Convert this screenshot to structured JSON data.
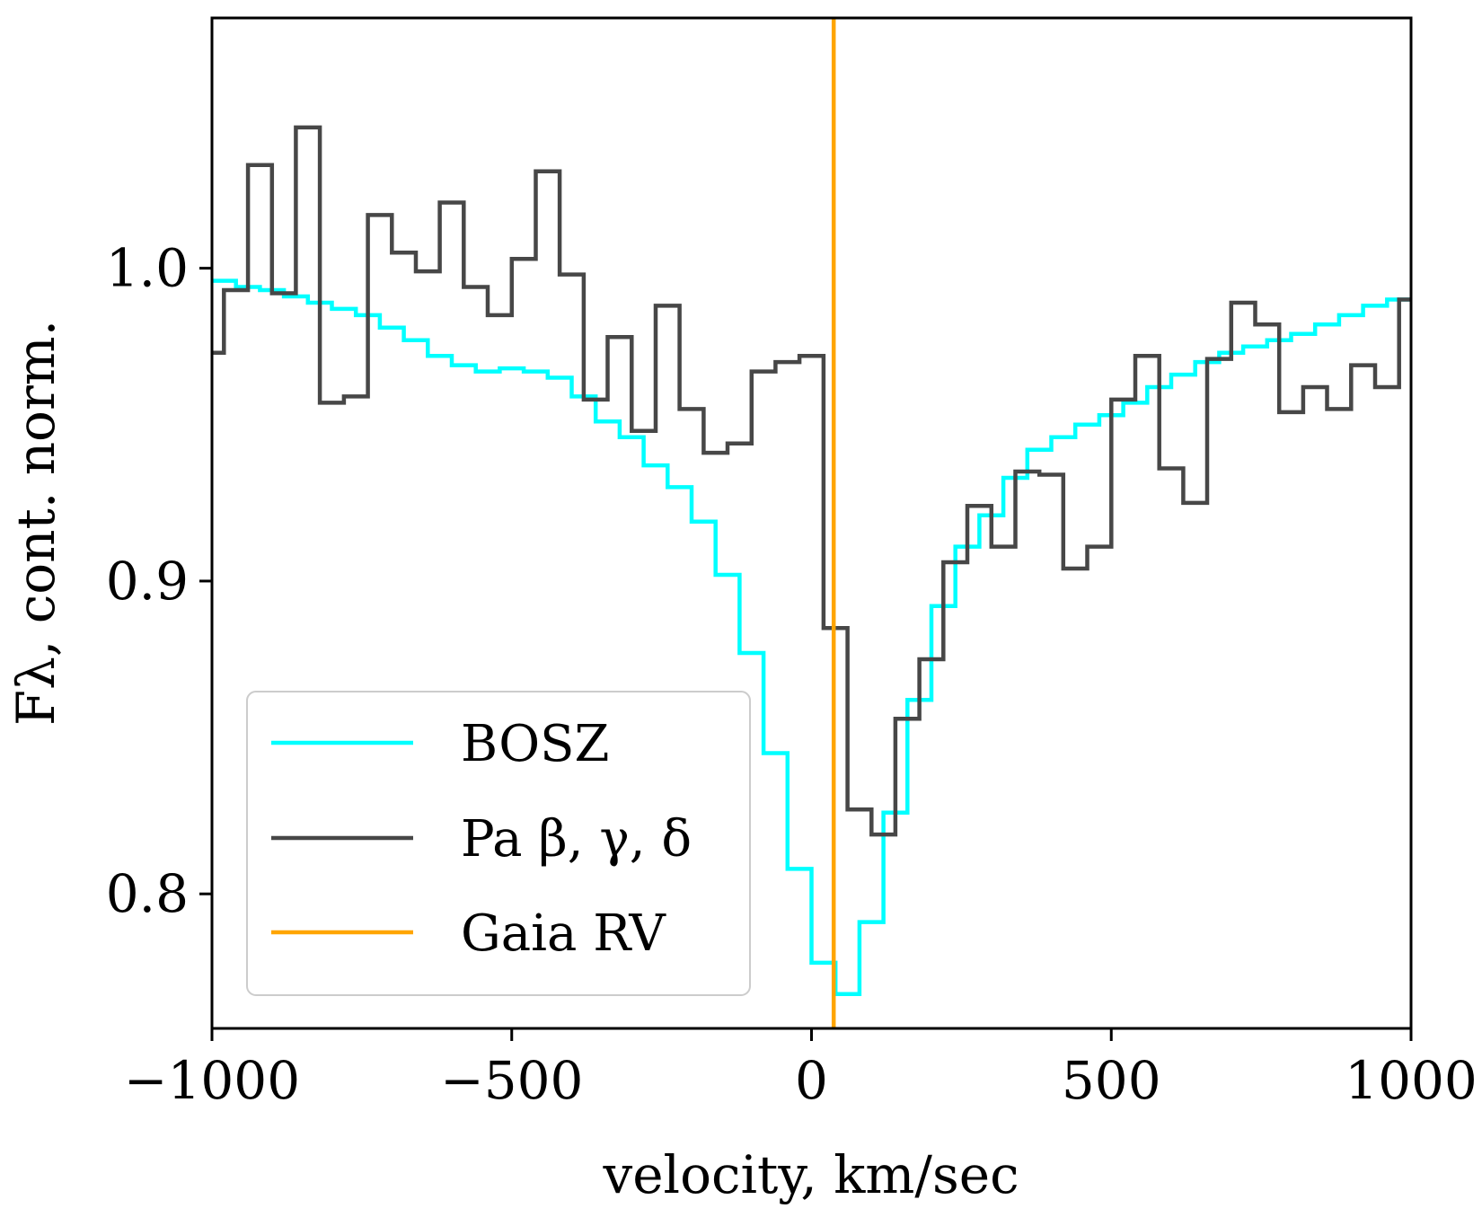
{
  "chart_data": {
    "type": "line",
    "title": "",
    "xlabel": "velocity, km/sec",
    "ylabel": "Fλ, cont. norm.",
    "xlim": [
      -1000,
      1000
    ],
    "ylim": [
      0.757,
      1.08
    ],
    "xticks": [
      -1000,
      -500,
      0,
      500,
      1000
    ],
    "xtick_labels": [
      "−1000",
      "−500",
      "0",
      "500",
      "1000"
    ],
    "yticks": [
      0.8,
      0.9,
      1.0
    ],
    "ytick_labels": [
      "0.8",
      "0.9",
      "1.0"
    ],
    "grid": false,
    "legend_position": "lower-left",
    "series": [
      {
        "name": "BOSZ",
        "style": "step",
        "color": "#00FFFF",
        "edges": [
          -1000,
          -960,
          -920,
          -880,
          -840,
          -800,
          -760,
          -720,
          -680,
          -640,
          -600,
          -560,
          -520,
          -480,
          -440,
          -400,
          -360,
          -320,
          -280,
          -240,
          -200,
          -160,
          -120,
          -80,
          -40,
          0,
          40,
          80,
          120,
          160,
          200,
          240,
          280,
          320,
          360,
          400,
          440,
          480,
          520,
          560,
          600,
          640,
          680,
          720,
          760,
          800,
          840,
          880,
          920,
          960,
          1000
        ],
        "values": [
          0.996,
          0.994,
          0.993,
          0.991,
          0.989,
          0.987,
          0.985,
          0.981,
          0.977,
          0.972,
          0.969,
          0.967,
          0.968,
          0.967,
          0.965,
          0.959,
          0.951,
          0.946,
          0.937,
          0.93,
          0.919,
          0.902,
          0.877,
          0.845,
          0.808,
          0.778,
          0.768,
          0.791,
          0.826,
          0.862,
          0.892,
          0.911,
          0.921,
          0.933,
          0.942,
          0.946,
          0.95,
          0.953,
          0.957,
          0.962,
          0.966,
          0.97,
          0.973,
          0.975,
          0.977,
          0.979,
          0.982,
          0.985,
          0.988,
          0.99
        ]
      },
      {
        "name": "Pa β, γ, δ",
        "style": "step",
        "color": "#474747",
        "edges": [
          -1000,
          -980,
          -940,
          -900,
          -860,
          -820,
          -780,
          -740,
          -700,
          -660,
          -620,
          -580,
          -540,
          -500,
          -460,
          -420,
          -380,
          -340,
          -300,
          -260,
          -220,
          -180,
          -140,
          -100,
          -60,
          -20,
          20,
          60,
          100,
          140,
          180,
          220,
          260,
          300,
          340,
          380,
          420,
          460,
          500,
          540,
          580,
          620,
          660,
          700,
          740,
          780,
          820,
          860,
          900,
          940,
          980,
          1000
        ],
        "values": [
          0.973,
          0.993,
          1.033,
          0.992,
          1.045,
          0.957,
          0.959,
          1.017,
          1.005,
          0.999,
          1.021,
          0.994,
          0.985,
          1.003,
          1.031,
          0.998,
          0.958,
          0.978,
          0.948,
          0.988,
          0.955,
          0.941,
          0.944,
          0.967,
          0.97,
          0.972,
          0.885,
          0.827,
          0.819,
          0.856,
          0.875,
          0.906,
          0.924,
          0.911,
          0.935,
          0.934,
          0.904,
          0.911,
          0.958,
          0.972,
          0.936,
          0.925,
          0.971,
          0.989,
          0.982,
          0.954,
          0.962,
          0.955,
          0.969,
          0.962,
          0.99
        ]
      },
      {
        "name": "Gaia RV",
        "style": "vline",
        "color": "#FFA500",
        "x": 37
      }
    ]
  }
}
